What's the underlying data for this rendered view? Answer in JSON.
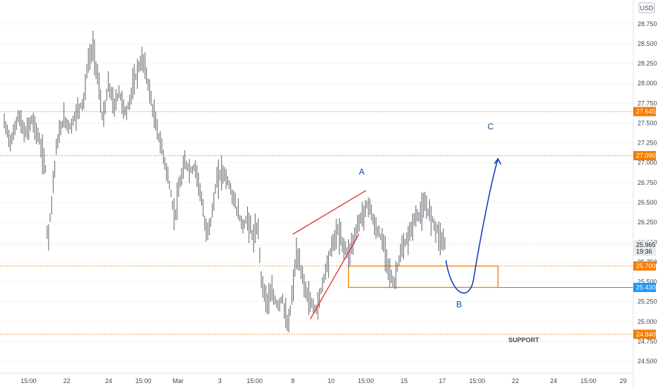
{
  "chart_data": {
    "type": "candlestick",
    "currency": "USD",
    "price_axis": {
      "min": 24.35,
      "max": 29.05,
      "ticks": [
        24.5,
        24.75,
        25.0,
        25.25,
        25.5,
        25.75,
        26.0,
        26.25,
        26.5,
        26.75,
        27.0,
        27.25,
        27.5,
        27.75,
        28.0,
        28.25,
        28.5,
        28.75
      ],
      "tick_labels": [
        "24.500",
        "24.750",
        "25.000",
        "25.250",
        "25.500",
        "25.750",
        "26.000",
        "26.250",
        "26.500",
        "26.750",
        "27.000",
        "27.250",
        "27.500",
        "27.750",
        "28.000",
        "28.250",
        "28.500",
        "28.750"
      ]
    },
    "time_axis": {
      "ticks": [
        {
          "label": "15:00",
          "t": 3.5
        },
        {
          "label": "22",
          "t": 9
        },
        {
          "label": "24",
          "t": 15
        },
        {
          "label": "15:00",
          "t": 20
        },
        {
          "label": "Mar",
          "t": 25
        },
        {
          "label": "3",
          "t": 31
        },
        {
          "label": "15:00",
          "t": 36
        },
        {
          "label": "8",
          "t": 41.5
        },
        {
          "label": "10",
          "t": 47
        },
        {
          "label": "15:00",
          "t": 52
        },
        {
          "label": "15",
          "t": 57.5
        },
        {
          "label": "17",
          "t": 63
        },
        {
          "label": "15:00",
          "t": 68
        },
        {
          "label": "22",
          "t": 73.5
        },
        {
          "label": "24",
          "t": 79
        },
        {
          "label": "15:00",
          "t": 84
        },
        {
          "label": "29",
          "t": 89
        }
      ]
    },
    "series": [
      {
        "t": 0,
        "price": 27.5
      },
      {
        "t": 1,
        "price": 27.25
      },
      {
        "t": 2,
        "price": 27.6
      },
      {
        "t": 3,
        "price": 27.35
      },
      {
        "t": 4,
        "price": 27.55
      },
      {
        "t": 5,
        "price": 27.3
      },
      {
        "t": 6,
        "price": 26.9
      },
      {
        "t": 6.2,
        "price": 25.95
      },
      {
        "t": 6.8,
        "price": 26.5
      },
      {
        "t": 7.5,
        "price": 27.2
      },
      {
        "t": 8.5,
        "price": 27.55
      },
      {
        "t": 9.5,
        "price": 27.45
      },
      {
        "t": 10.5,
        "price": 27.65
      },
      {
        "t": 11.5,
        "price": 27.8
      },
      {
        "t": 12,
        "price": 28.25
      },
      {
        "t": 12.8,
        "price": 28.45
      },
      {
        "t": 13.5,
        "price": 28.05
      },
      {
        "t": 14.2,
        "price": 27.5
      },
      {
        "t": 15,
        "price": 28.0
      },
      {
        "t": 15.8,
        "price": 27.7
      },
      {
        "t": 16.5,
        "price": 27.9
      },
      {
        "t": 17.5,
        "price": 27.6
      },
      {
        "t": 18.5,
        "price": 27.95
      },
      {
        "t": 19.3,
        "price": 28.2
      },
      {
        "t": 20,
        "price": 28.3
      },
      {
        "t": 20.8,
        "price": 27.95
      },
      {
        "t": 21.5,
        "price": 27.6
      },
      {
        "t": 22.3,
        "price": 27.3
      },
      {
        "t": 23,
        "price": 27.05
      },
      {
        "t": 23.8,
        "price": 26.7
      },
      {
        "t": 24.5,
        "price": 26.3
      },
      {
        "t": 25.2,
        "price": 26.7
      },
      {
        "t": 26,
        "price": 27.0
      },
      {
        "t": 26.8,
        "price": 26.9
      },
      {
        "t": 27.5,
        "price": 26.95
      },
      {
        "t": 28.3,
        "price": 26.6
      },
      {
        "t": 29,
        "price": 26.1
      },
      {
        "t": 29.8,
        "price": 26.3
      },
      {
        "t": 30.5,
        "price": 26.75
      },
      {
        "t": 31.3,
        "price": 26.9
      },
      {
        "t": 32,
        "price": 26.8
      },
      {
        "t": 32.8,
        "price": 26.6
      },
      {
        "t": 33.5,
        "price": 26.4
      },
      {
        "t": 34.3,
        "price": 26.2
      },
      {
        "t": 35,
        "price": 26.3
      },
      {
        "t": 35.8,
        "price": 26.05
      },
      {
        "t": 36.5,
        "price": 26.2
      },
      {
        "t": 37,
        "price": 25.5
      },
      {
        "t": 37.8,
        "price": 25.25
      },
      {
        "t": 38.5,
        "price": 25.35
      },
      {
        "t": 39.3,
        "price": 25.2
      },
      {
        "t": 40,
        "price": 25.3
      },
      {
        "t": 40.8,
        "price": 24.9
      },
      {
        "t": 41.5,
        "price": 25.4
      },
      {
        "t": 42,
        "price": 25.85
      },
      {
        "t": 42.8,
        "price": 25.6
      },
      {
        "t": 43.5,
        "price": 25.35
      },
      {
        "t": 44.3,
        "price": 25.2
      },
      {
        "t": 45,
        "price": 25.15
      },
      {
        "t": 45.8,
        "price": 25.5
      },
      {
        "t": 46.5,
        "price": 25.75
      },
      {
        "t": 47.3,
        "price": 26.0
      },
      {
        "t": 48,
        "price": 26.15
      },
      {
        "t": 48.8,
        "price": 25.95
      },
      {
        "t": 49.5,
        "price": 25.85
      },
      {
        "t": 50.3,
        "price": 26.05
      },
      {
        "t": 51,
        "price": 26.25
      },
      {
        "t": 51.8,
        "price": 26.4
      },
      {
        "t": 52.5,
        "price": 26.5
      },
      {
        "t": 53.2,
        "price": 26.2
      },
      {
        "t": 54,
        "price": 26.1
      },
      {
        "t": 54.8,
        "price": 25.9
      },
      {
        "t": 55.5,
        "price": 25.6
      },
      {
        "t": 56,
        "price": 25.45
      },
      {
        "t": 56.8,
        "price": 25.8
      },
      {
        "t": 57.5,
        "price": 25.95
      },
      {
        "t": 58.3,
        "price": 26.1
      },
      {
        "t": 59,
        "price": 26.3
      },
      {
        "t": 59.8,
        "price": 26.35
      },
      {
        "t": 60.5,
        "price": 26.45
      },
      {
        "t": 61.3,
        "price": 26.35
      },
      {
        "t": 62,
        "price": 26.2
      },
      {
        "t": 62.8,
        "price": 26.05
      },
      {
        "t": 63.5,
        "price": 25.97
      }
    ]
  },
  "levels": [
    {
      "price": 27.645,
      "label": "27.645",
      "color": "#f57c00",
      "style": "dotted"
    },
    {
      "price": 27.09,
      "label": "27.090",
      "color": "#f57c00",
      "style": "dotted"
    },
    {
      "price": 25.7,
      "label": "25.700",
      "color": "#f57c00",
      "style": "dotted"
    },
    {
      "price": 24.84,
      "label": "24.840",
      "color": "#f57c00",
      "style": "dotted"
    },
    {
      "price": 25.43,
      "label": "25.430",
      "color": "#2196f3",
      "style": "solid",
      "from_t": 71
    }
  ],
  "last_price": {
    "price": 25.965,
    "label": "25.965",
    "countdown": "19:36"
  },
  "zone": {
    "t_start": 49.5,
    "t_end": 71,
    "price_top": 25.7,
    "price_bottom": 25.43,
    "color": "#f57c00"
  },
  "wedge": {
    "upper": [
      {
        "t": 41.5,
        "price": 26.1
      },
      {
        "t": 52,
        "price": 26.65
      }
    ],
    "lower": [
      {
        "t": 44,
        "price": 25.03
      },
      {
        "t": 51,
        "price": 26.1
      }
    ],
    "color": "#e53935"
  },
  "projection": {
    "points": [
      {
        "t": 63.5,
        "price": 25.77
      },
      {
        "t": 66,
        "price": 25.45
      },
      {
        "t": 68.5,
        "price": 25.62
      },
      {
        "t": 71,
        "price": 27.05
      }
    ],
    "color": "#1a3fbf"
  },
  "annotations": [
    {
      "text": "A",
      "t": 51,
      "price": 26.85,
      "color": "#0d47a1"
    },
    {
      "text": "B",
      "t": 65,
      "price": 25.18,
      "color": "#0d47a1"
    },
    {
      "text": "C",
      "t": 69.5,
      "price": 27.42,
      "color": "#0d47a1"
    },
    {
      "text": "SUPPORT",
      "t": 72.5,
      "price": 24.74,
      "color": "#434651"
    }
  ]
}
